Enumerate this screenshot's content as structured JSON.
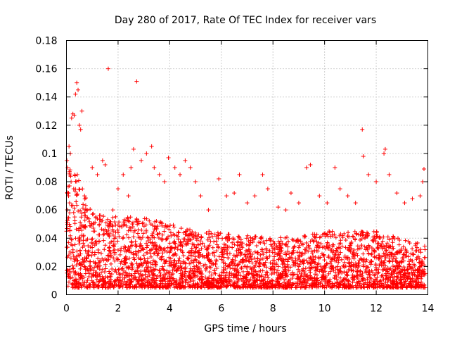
{
  "chart_data": {
    "type": "scatter",
    "title": "Day 280 of 2017, Rate Of TEC Index for receiver vars",
    "xlabel": "GPS time / hours",
    "ylabel": "ROTI / TECUs",
    "xlim": [
      0,
      14
    ],
    "ylim": [
      0,
      0.18
    ],
    "xticks": [
      0,
      2,
      4,
      6,
      8,
      10,
      12,
      14
    ],
    "xtick_labels": [
      "0",
      "2",
      "4",
      "6",
      "8",
      "10",
      "12",
      "14"
    ],
    "yticks": [
      0,
      0.02,
      0.04,
      0.06,
      0.08,
      0.1,
      0.12,
      0.14,
      0.16,
      0.18
    ],
    "ytick_labels": [
      "0",
      "0.02",
      "0.04",
      "0.06",
      "0.08",
      "0.1",
      "0.12",
      "0.14",
      "0.16",
      "0.18"
    ],
    "grid": true,
    "marker": "+",
    "color": "#ff0000",
    "points": [
      [
        0.05,
        0.09
      ],
      [
        0.1,
        0.105
      ],
      [
        0.15,
        0.1
      ],
      [
        0.2,
        0.125
      ],
      [
        0.25,
        0.128
      ],
      [
        0.3,
        0.127
      ],
      [
        0.35,
        0.142
      ],
      [
        0.4,
        0.15
      ],
      [
        0.45,
        0.145
      ],
      [
        0.5,
        0.12
      ],
      [
        0.6,
        0.13
      ],
      [
        0.55,
        0.117
      ],
      [
        0.08,
        0.07
      ],
      [
        0.12,
        0.065
      ],
      [
        0.18,
        0.08
      ],
      [
        0.28,
        0.075
      ],
      [
        0.42,
        0.085
      ],
      [
        0.7,
        0.07
      ],
      [
        0.8,
        0.06
      ],
      [
        1.0,
        0.09
      ],
      [
        1.2,
        0.085
      ],
      [
        1.4,
        0.095
      ],
      [
        1.5,
        0.092
      ],
      [
        1.62,
        0.16
      ],
      [
        1.8,
        0.06
      ],
      [
        2.0,
        0.075
      ],
      [
        2.2,
        0.085
      ],
      [
        2.4,
        0.07
      ],
      [
        2.5,
        0.09
      ],
      [
        2.6,
        0.103
      ],
      [
        2.72,
        0.151
      ],
      [
        2.9,
        0.095
      ],
      [
        3.1,
        0.1
      ],
      [
        3.3,
        0.105
      ],
      [
        3.4,
        0.09
      ],
      [
        3.6,
        0.085
      ],
      [
        3.8,
        0.08
      ],
      [
        3.95,
        0.097
      ],
      [
        4.2,
        0.09
      ],
      [
        4.4,
        0.085
      ],
      [
        4.6,
        0.095
      ],
      [
        4.8,
        0.09
      ],
      [
        5.0,
        0.08
      ],
      [
        5.2,
        0.07
      ],
      [
        5.5,
        0.06
      ],
      [
        5.9,
        0.082
      ],
      [
        6.2,
        0.07
      ],
      [
        6.5,
        0.072
      ],
      [
        6.7,
        0.085
      ],
      [
        7.0,
        0.065
      ],
      [
        7.3,
        0.07
      ],
      [
        7.6,
        0.085
      ],
      [
        7.8,
        0.075
      ],
      [
        8.2,
        0.062
      ],
      [
        8.5,
        0.06
      ],
      [
        8.7,
        0.072
      ],
      [
        9.0,
        0.065
      ],
      [
        9.3,
        0.09
      ],
      [
        9.45,
        0.092
      ],
      [
        9.8,
        0.07
      ],
      [
        10.1,
        0.065
      ],
      [
        10.4,
        0.09
      ],
      [
        10.6,
        0.075
      ],
      [
        10.9,
        0.07
      ],
      [
        11.2,
        0.065
      ],
      [
        11.46,
        0.117
      ],
      [
        11.5,
        0.098
      ],
      [
        11.7,
        0.085
      ],
      [
        12.0,
        0.08
      ],
      [
        12.3,
        0.1
      ],
      [
        12.35,
        0.103
      ],
      [
        12.5,
        0.085
      ],
      [
        12.8,
        0.072
      ],
      [
        13.1,
        0.065
      ],
      [
        13.4,
        0.068
      ],
      [
        13.7,
        0.07
      ],
      [
        13.85,
        0.089
      ],
      [
        13.8,
        0.08
      ],
      [
        0.5,
        0.04
      ],
      [
        1.0,
        0.03
      ],
      [
        1.5,
        0.035
      ],
      [
        2.0,
        0.025
      ],
      [
        2.5,
        0.03
      ],
      [
        3.0,
        0.028
      ],
      [
        3.5,
        0.032
      ],
      [
        4.0,
        0.03
      ],
      [
        4.5,
        0.03
      ],
      [
        5.0,
        0.025
      ],
      [
        5.5,
        0.028
      ],
      [
        6.0,
        0.025
      ],
      [
        6.5,
        0.022
      ],
      [
        7.0,
        0.02
      ],
      [
        7.5,
        0.022
      ],
      [
        8.0,
        0.02
      ],
      [
        8.5,
        0.02
      ],
      [
        9.0,
        0.02
      ],
      [
        9.5,
        0.022
      ],
      [
        10.0,
        0.02
      ],
      [
        10.5,
        0.02
      ],
      [
        11.0,
        0.02
      ],
      [
        11.5,
        0.02
      ],
      [
        12.0,
        0.018
      ],
      [
        12.5,
        0.018
      ],
      [
        13.0,
        0.018
      ],
      [
        13.5,
        0.017
      ],
      [
        13.9,
        0.015
      ]
    ],
    "dense_band": {
      "description": "dense cloud of ROTI samples",
      "x_range": [
        0,
        13.9
      ],
      "typical_low": 0.005,
      "typical_high_by_hour": [
        [
          0,
          0.1
        ],
        [
          0.5,
          0.08
        ],
        [
          1,
          0.06
        ],
        [
          2,
          0.055
        ],
        [
          3,
          0.055
        ],
        [
          4,
          0.05
        ],
        [
          5,
          0.045
        ],
        [
          6,
          0.045
        ],
        [
          7,
          0.042
        ],
        [
          8,
          0.04
        ],
        [
          9,
          0.042
        ],
        [
          10,
          0.045
        ],
        [
          11,
          0.045
        ],
        [
          12,
          0.045
        ],
        [
          13,
          0.04
        ],
        [
          13.9,
          0.035
        ]
      ]
    }
  }
}
